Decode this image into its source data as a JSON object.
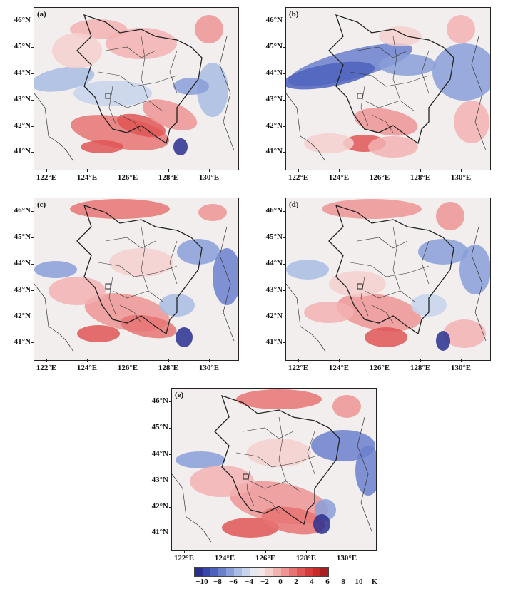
{
  "panels": [
    {
      "id": "a",
      "label": "(a)"
    },
    {
      "id": "b",
      "label": "(b)"
    },
    {
      "id": "c",
      "label": "(c)"
    },
    {
      "id": "d",
      "label": "(d)"
    },
    {
      "id": "e",
      "label": "(e)"
    }
  ],
  "axes": {
    "lat_labels": [
      "46°N",
      "45°N",
      "44°N",
      "43°N",
      "42°N",
      "41°N"
    ],
    "lon_labels": [
      "122°E",
      "124°E",
      "126°E",
      "128°E",
      "130°E"
    ]
  },
  "colorbar": {
    "labels": [
      "−10",
      "−8",
      "−6",
      "−4",
      "−2",
      "0",
      "2",
      "4",
      "6",
      "8",
      "10"
    ],
    "unit": "K",
    "colors": [
      "#2a2f8f",
      "#3a47a8",
      "#4d61bd",
      "#6b80cc",
      "#8a9fd8",
      "#a9bce3",
      "#c8d4ec",
      "#e4e8f1",
      "#f4e6e6",
      "#f6cfcf",
      "#f3b2b2",
      "#ee9494",
      "#e87373",
      "#e05555",
      "#d63b3b",
      "#c82a2a",
      "#a62020"
    ]
  },
  "colors": {
    "warm": "#e86a6a",
    "cool": "#7e93d6",
    "neutral": "#f2eeee"
  }
}
